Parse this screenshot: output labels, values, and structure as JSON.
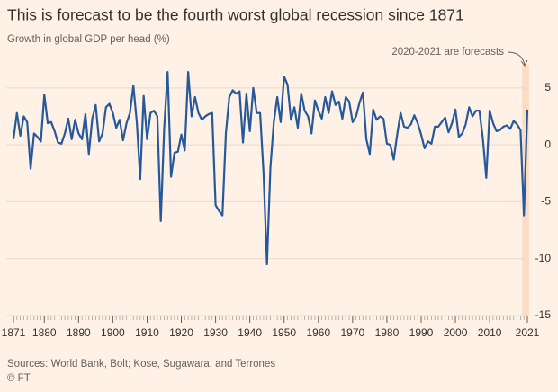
{
  "chart_data": {
    "type": "line",
    "title": "This is forecast to be the fourth worst global recession  since 1871",
    "subtitle": "Growth in global GDP per head (%)",
    "annotation": "2020-2021 are forecasts",
    "source": "Sources: World Bank, Bolt; Kose, Sugawara, and Terrones",
    "credit": "© FT",
    "shaded_x": [
      2020,
      2021
    ],
    "shade_color": "#fbdcc4",
    "grid": true,
    "xlim": [
      1871,
      2021
    ],
    "xticks": [
      1871,
      1880,
      1890,
      1900,
      1910,
      1920,
      1930,
      1940,
      1950,
      1960,
      1970,
      1980,
      1990,
      2000,
      2010,
      2021
    ],
    "ylim": [
      -15,
      7
    ],
    "yticks": [
      5,
      0,
      -5,
      -10,
      -15
    ],
    "x": [
      1871,
      1872,
      1873,
      1874,
      1875,
      1876,
      1877,
      1878,
      1879,
      1880,
      1881,
      1882,
      1883,
      1884,
      1885,
      1886,
      1887,
      1888,
      1889,
      1890,
      1891,
      1892,
      1893,
      1894,
      1895,
      1896,
      1897,
      1898,
      1899,
      1900,
      1901,
      1902,
      1903,
      1904,
      1905,
      1906,
      1907,
      1908,
      1909,
      1910,
      1911,
      1912,
      1913,
      1914,
      1915,
      1916,
      1917,
      1918,
      1919,
      1920,
      1921,
      1922,
      1923,
      1924,
      1925,
      1926,
      1927,
      1928,
      1929,
      1930,
      1931,
      1932,
      1933,
      1934,
      1935,
      1936,
      1937,
      1938,
      1939,
      1940,
      1941,
      1942,
      1943,
      1944,
      1945,
      1946,
      1947,
      1948,
      1949,
      1950,
      1951,
      1952,
      1953,
      1954,
      1955,
      1956,
      1957,
      1958,
      1959,
      1960,
      1961,
      1962,
      1963,
      1964,
      1965,
      1966,
      1967,
      1968,
      1969,
      1970,
      1971,
      1972,
      1973,
      1974,
      1975,
      1976,
      1977,
      1978,
      1979,
      1980,
      1981,
      1982,
      1983,
      1984,
      1985,
      1986,
      1987,
      1988,
      1989,
      1990,
      1991,
      1992,
      1993,
      1994,
      1995,
      1996,
      1997,
      1998,
      1999,
      2000,
      2001,
      2002,
      2003,
      2004,
      2005,
      2006,
      2007,
      2008,
      2009,
      2010,
      2011,
      2012,
      2013,
      2014,
      2015,
      2016,
      2017,
      2018,
      2019,
      2020,
      2021
    ],
    "series": [
      {
        "color": "#26599a",
        "values": [
          0.5,
          2.8,
          0.8,
          2.5,
          2.0,
          -2.1,
          1.0,
          0.7,
          0.3,
          4.4,
          1.9,
          2.0,
          1.2,
          0.2,
          0.1,
          1.0,
          2.3,
          0.5,
          2.2,
          1.0,
          0.5,
          2.7,
          -0.8,
          2.3,
          3.5,
          0.3,
          1.0,
          3.3,
          3.6,
          2.8,
          1.5,
          2.2,
          0.4,
          1.9,
          2.8,
          5.2,
          2.0,
          -3.0,
          4.3,
          0.5,
          2.8,
          3.0,
          2.5,
          -6.7,
          1.5,
          6.4,
          -2.8,
          -0.7,
          -0.6,
          0.9,
          -0.5,
          6.4,
          2.5,
          4.2,
          2.8,
          2.2,
          2.5,
          2.7,
          2.8,
          -5.3,
          -5.8,
          -6.2,
          1.0,
          4.2,
          4.8,
          4.5,
          4.7,
          0.2,
          4.5,
          1.2,
          5.0,
          2.8,
          2.8,
          -2.5,
          -10.5,
          -2.0,
          2.0,
          4.2,
          2.0,
          6.0,
          5.3,
          2.2,
          3.3,
          1.5,
          4.5,
          3.0,
          2.5,
          1.0,
          3.9,
          3.0,
          2.3,
          4.2,
          2.8,
          4.7,
          3.5,
          3.8,
          2.3,
          4.2,
          3.8,
          2.0,
          2.5,
          3.7,
          4.6,
          0.5,
          -0.8,
          3.1,
          2.2,
          2.5,
          2.3,
          0.1,
          0.0,
          -1.3,
          0.9,
          2.8,
          1.6,
          1.5,
          1.8,
          2.6,
          1.9,
          0.9,
          -0.3,
          0.3,
          0.1,
          1.6,
          1.6,
          2.0,
          2.4,
          1.1,
          1.9,
          3.1,
          0.7,
          1.0,
          1.8,
          3.3,
          2.5,
          3.0,
          3.0,
          0.6,
          -2.9,
          3.0,
          1.9,
          1.2,
          1.3,
          1.6,
          1.7,
          1.4,
          2.1,
          1.8,
          1.3,
          -6.2,
          3.1
        ]
      }
    ]
  }
}
